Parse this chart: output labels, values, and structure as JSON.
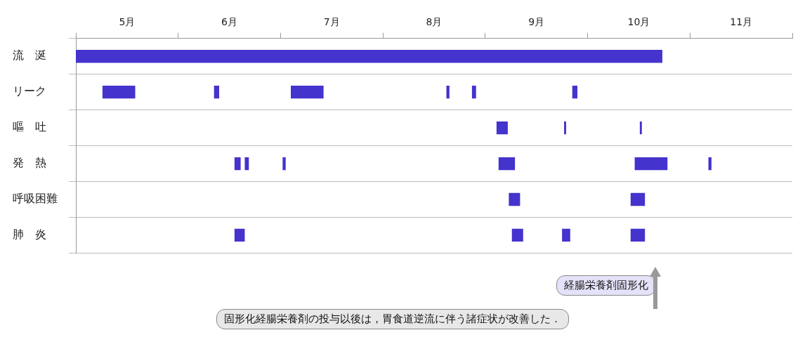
{
  "chart_data": {
    "type": "bar",
    "orientation": "horizontal",
    "categories": [
      "流　涎",
      "リーク",
      "嘔　吐",
      "発　熱",
      "呼吸困難",
      "肺　炎"
    ],
    "series": [
      {
        "color": "#4433cc",
        "base": [
          5,
          5.26,
          9.11,
          6.55,
          9.23,
          6.55
        ],
        "values": [
          5.73,
          0.32,
          0.11,
          0.06,
          0.11,
          0.1
        ]
      },
      {
        "color": "#4433cc",
        "base": [
          null,
          6.35,
          9.77,
          6.65,
          10.42,
          9.26
        ],
        "values": [
          null,
          0.05,
          0.02,
          0.04,
          0.14,
          0.11
        ]
      },
      {
        "color": "#4433cc",
        "base": [
          null,
          7.1,
          10.51,
          7.02,
          null,
          9.75
        ],
        "values": [
          null,
          0.32,
          0.02,
          0.03,
          null,
          0.08
        ]
      },
      {
        "color": "#4433cc",
        "base": [
          null,
          8.62,
          null,
          9.13,
          null,
          10.42
        ],
        "values": [
          null,
          0.03,
          null,
          0.16,
          null,
          0.14
        ]
      },
      {
        "color": "#4433cc",
        "base": [
          null,
          8.87,
          null,
          10.46,
          null,
          null
        ],
        "values": [
          null,
          0.04,
          null,
          0.32,
          null,
          null
        ]
      },
      {
        "color": "#4433cc",
        "base": [
          null,
          9.85,
          null,
          11.18,
          null,
          null
        ],
        "values": [
          null,
          0.05,
          null,
          0.03,
          null,
          null
        ]
      }
    ],
    "xlim": [
      5,
      12
    ],
    "xticks": [
      {
        "value": 5,
        "label": null
      },
      {
        "value": 5.5,
        "label": "5月"
      },
      {
        "value": 6,
        "label": null
      },
      {
        "value": 6.5,
        "label": "6月"
      },
      {
        "value": 7,
        "label": null
      },
      {
        "value": 7.5,
        "label": "7月"
      },
      {
        "value": 8,
        "label": null
      },
      {
        "value": 8.5,
        "label": "8月"
      },
      {
        "value": 9,
        "label": null
      },
      {
        "value": 9.5,
        "label": "9月"
      },
      {
        "value": 10,
        "label": null
      },
      {
        "value": 10.5,
        "label": "10月"
      },
      {
        "value": 11,
        "label": null
      },
      {
        "value": 11.5,
        "label": "11月"
      },
      {
        "value": 12,
        "label": null
      }
    ],
    "grid": "y",
    "legend": false,
    "annotations": [
      "経腸栄養剤固形化",
      "固形化経腸栄養剤の投与以後は，胃食道逆流に伴う諸症状が改善した．"
    ]
  }
}
